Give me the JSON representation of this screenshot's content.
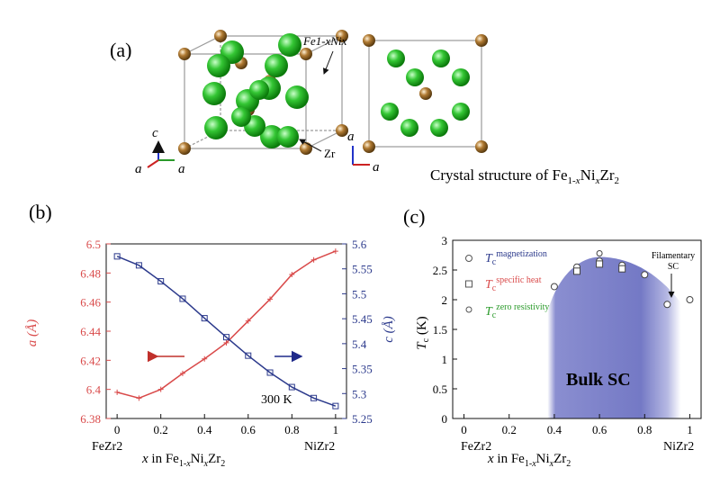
{
  "panel_a": {
    "label": "(a)",
    "label_fe_ni": "Fe1-xNix",
    "label_zr": "Zr",
    "axes_left": {
      "c": "c",
      "a1": "a",
      "a2": "a"
    },
    "axes_right": {
      "a1": "a",
      "a2": "a"
    },
    "caption": "Crystal structure of Fe1-xNixZr2",
    "colors": {
      "zr_atom": "#2fbf2f",
      "feni_atom": "#a8732b",
      "cell_edge": "#9a9a9a"
    }
  },
  "panel_b": {
    "label": "(b)",
    "temperature": "300 K",
    "colors": {
      "a_series": "#d94a4a",
      "c_series": "#2c3a8c"
    }
  },
  "panel_c": {
    "label": "(c)",
    "region_label": "Bulk SC",
    "filamentary_line1": "Filamentary",
    "filamentary_line2": "SC",
    "colors": {
      "dome": "#7b7fc9"
    }
  },
  "chart_data": [
    {
      "type": "line",
      "xlabel": "x in Fe1-xNixZr2",
      "xlim": [
        -0.05,
        1.05
      ],
      "x_ticks": [
        "FeZr2",
        "0",
        "0.2",
        "0.4",
        "0.6",
        "0.8",
        "1",
        "NiZr2"
      ],
      "series": [
        {
          "name": "a (Å)",
          "axis": "left",
          "x": [
            0,
            0.1,
            0.2,
            0.3,
            0.4,
            0.5,
            0.6,
            0.7,
            0.8,
            0.9,
            1.0
          ],
          "values": [
            6.398,
            6.394,
            6.4,
            6.411,
            6.421,
            6.432,
            6.447,
            6.462,
            6.479,
            6.489,
            6.495
          ]
        },
        {
          "name": "c (Å)",
          "axis": "right",
          "x": [
            0,
            0.1,
            0.2,
            0.3,
            0.4,
            0.5,
            0.6,
            0.7,
            0.8,
            0.9,
            1.0
          ],
          "values": [
            5.575,
            5.557,
            5.525,
            5.49,
            5.451,
            5.413,
            5.376,
            5.342,
            5.313,
            5.291,
            5.275
          ]
        }
      ],
      "ylabel_left": "a (Å)",
      "ylim_left": [
        6.38,
        6.5
      ],
      "y_ticks_left": [
        "6.38",
        "6.4",
        "6.42",
        "6.44",
        "6.46",
        "6.48",
        "6.5"
      ],
      "ylabel_right": "c (Å)",
      "ylim_right": [
        5.25,
        5.6
      ],
      "y_ticks_right": [
        "5.25",
        "5.3",
        "5.35",
        "5.4",
        "5.45",
        "5.5",
        "5.55",
        "5.6"
      ],
      "annotations": [
        "300 K"
      ],
      "grid": false
    },
    {
      "type": "scatter",
      "xlabel": "x in Fe1-xNixZr2",
      "ylabel": "Tc (K)",
      "xlim": [
        -0.05,
        1.05
      ],
      "ylim": [
        0,
        3
      ],
      "x_ticks": [
        "FeZr2",
        "0",
        "0.2",
        "0.4",
        "0.6",
        "0.8",
        "1",
        "NiZr2"
      ],
      "y_ticks": [
        "0",
        "0.5",
        "1",
        "1.5",
        "2",
        "2.5",
        "3"
      ],
      "legend_position": "top-left",
      "series": [
        {
          "name": "Tc magnetization",
          "marker": "circle",
          "x": [
            0.4,
            0.5,
            0.6,
            0.7,
            0.8,
            0.9,
            1.0
          ],
          "values": [
            2.22,
            2.55,
            2.65,
            2.58,
            2.42,
            1.92,
            2.0
          ]
        },
        {
          "name": "Tc specific heat",
          "marker": "square",
          "x": [
            0.5,
            0.6,
            0.7
          ],
          "values": [
            2.48,
            2.6,
            2.52
          ]
        },
        {
          "name": "Tc zero resistivity",
          "marker": "circle-small",
          "x": [
            0.6
          ],
          "values": [
            2.78
          ]
        }
      ],
      "legend": [
        {
          "symbol": "Tc",
          "sup": "magnetization",
          "color": "#2c3a8c"
        },
        {
          "symbol": "Tc",
          "sup": "specific heat",
          "color": "#d94a4a"
        },
        {
          "symbol": "Tc",
          "sup": "zero resistivity",
          "color": "#2a9a2a"
        }
      ],
      "annotations": [
        "Bulk SC",
        "Filamentary SC"
      ],
      "grid": false
    }
  ]
}
